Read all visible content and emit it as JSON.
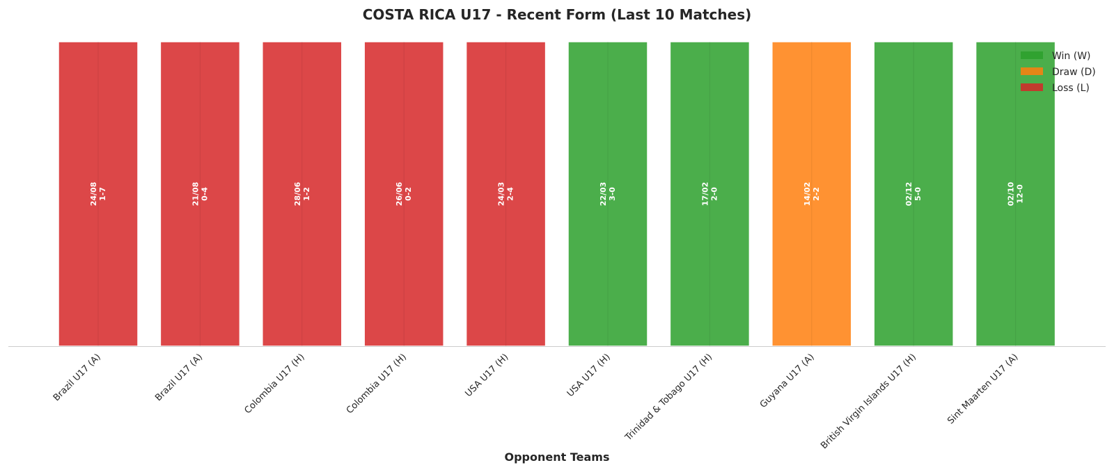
{
  "chart_data": {
    "type": "bar",
    "title": "COSTA RICA U17 - Recent Form (Last 10 Matches)",
    "xlabel": "Opponent Teams",
    "ylabel": "",
    "ylim": [
      0,
      1
    ],
    "grid": false,
    "legend_position": "top-right",
    "categories": [
      "Brazil U17 (A)",
      "Brazil U17 (A)",
      "Colombia U17 (H)",
      "Colombia U17 (H)",
      "USA U17 (H)",
      "USA U17 (H)",
      "Trinidad & Tobago U17 (H)",
      "Guyana U17 (A)",
      "British Virgin Islands U17 (H)",
      "Sint Maarten U17 (A)"
    ],
    "values": [
      1,
      1,
      1,
      1,
      1,
      1,
      1,
      1,
      1,
      1
    ],
    "results": [
      "L",
      "L",
      "L",
      "L",
      "L",
      "W",
      "W",
      "D",
      "W",
      "W"
    ],
    "dates": [
      "24/08",
      "21/08",
      "28/06",
      "26/06",
      "24/03",
      "22/03",
      "17/02",
      "14/02",
      "02/12",
      "02/10"
    ],
    "scores": [
      "1-7",
      "0-4",
      "1-2",
      "0-2",
      "2-4",
      "3-0",
      "2-0",
      "2-2",
      "5-0",
      "12-0"
    ],
    "legend": [
      {
        "key": "W",
        "label": "Win (W)",
        "color": "#2ca02c"
      },
      {
        "key": "D",
        "label": "Draw (D)",
        "color": "#ff7f0e"
      },
      {
        "key": "L",
        "label": "Loss (L)",
        "color": "#d62728"
      }
    ]
  }
}
